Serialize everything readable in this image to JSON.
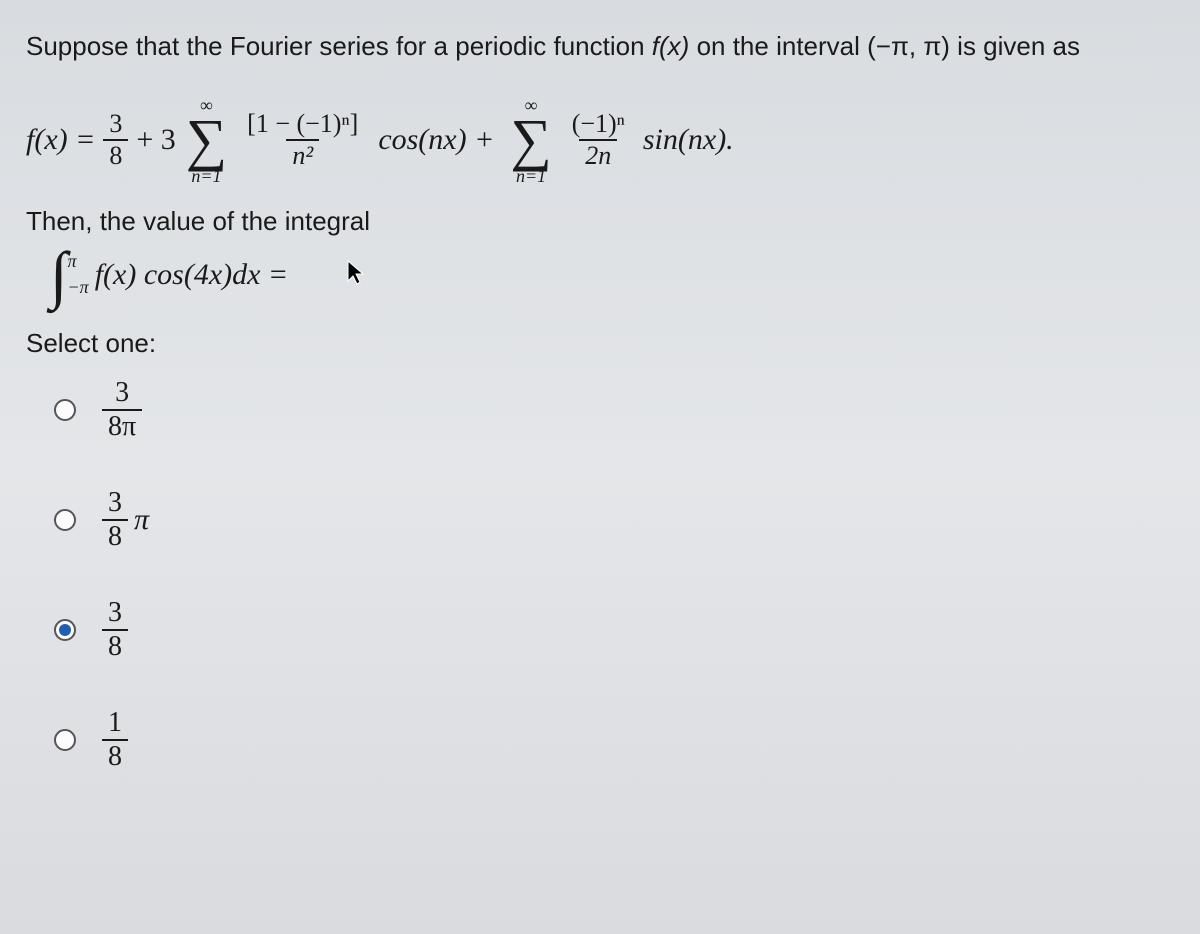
{
  "question": {
    "intro": "Suppose that the Fourier series for a periodic function ",
    "func": "f(x)",
    "mid": " on the interval ",
    "interval": "(−π, π)",
    "tail": " is given as"
  },
  "formula": {
    "lhs": "f(x) =",
    "const_num": "3",
    "const_den": "8",
    "plus3": "+ 3",
    "sigma1_top": "∞",
    "sigma1_bot": "n=1",
    "frac1_num": "[1 − (−1)ⁿ]",
    "frac1_den": "n²",
    "cos": "cos(nx) +",
    "sigma2_top": "∞",
    "sigma2_bot": "n=1",
    "frac2_num": "(−1)ⁿ",
    "frac2_den": "2n",
    "sin": "sin(nx)."
  },
  "then_line": "Then, the value of the integral",
  "integral": {
    "upper": "π",
    "lower": "−π",
    "body": "f(x) cos(4x)dx ="
  },
  "select_label": "Select one:",
  "options": [
    {
      "id": "a",
      "num": "3",
      "den": "8π",
      "suffix": "",
      "checked": false
    },
    {
      "id": "b",
      "num": "3",
      "den": "8",
      "suffix": "π",
      "checked": false
    },
    {
      "id": "c",
      "num": "3",
      "den": "8",
      "suffix": "",
      "checked": true
    },
    {
      "id": "d",
      "num": "1",
      "den": "8",
      "suffix": "",
      "checked": false
    }
  ],
  "colors": {
    "text": "#1a1a1a",
    "radio_fill": "#1e5fb3",
    "bg_top": "#d8dce0",
    "bg_bot": "#d9dbdf"
  }
}
